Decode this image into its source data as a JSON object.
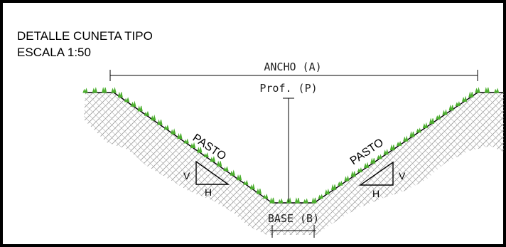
{
  "title": {
    "line1": "DETALLE CUNETA TIPO",
    "line2": "ESCALA 1:50"
  },
  "dimensions": {
    "width_label": "ANCHO (A)",
    "depth_label": "Prof. (P)",
    "base_label": "BASE (B)"
  },
  "slopes": {
    "left_label": "PASTO",
    "right_label": "PASTO",
    "vertical_label": "V",
    "horizontal_label": "H"
  },
  "colors": {
    "frame": "#000000",
    "grass": "#4caf2f",
    "soil_hatch": "#9a9a9a",
    "line": "#000000"
  }
}
